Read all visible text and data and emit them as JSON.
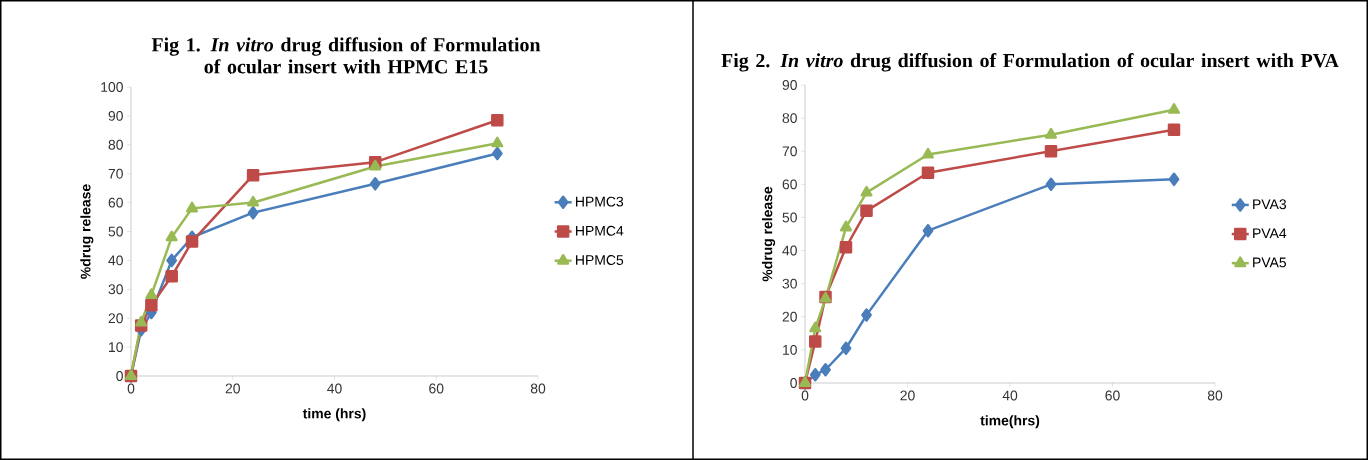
{
  "chart_data": [
    {
      "type": "line",
      "title": "Fig 1. *In vitro* drug diffusion of Formulation of ocular insert with HPMC E15",
      "xlabel": "time (hrs)",
      "ylabel": "%drug release",
      "x": [
        0,
        2,
        4,
        8,
        12,
        24,
        48,
        72
      ],
      "xlim": [
        0,
        80
      ],
      "xticks": [
        0,
        20,
        40,
        60,
        80
      ],
      "ylim": [
        0,
        100
      ],
      "yticks": [
        0,
        10,
        20,
        30,
        40,
        50,
        60,
        70,
        80,
        90,
        100
      ],
      "grid": false,
      "legend": "right",
      "line_style": "solid",
      "series": [
        {
          "name": "HPMC3",
          "color": "#4a7ebb",
          "marker": "diamond",
          "values": [
            0,
            16,
            22,
            40,
            48,
            56.5,
            66.5,
            77
          ]
        },
        {
          "name": "HPMC4",
          "color": "#be4b48",
          "marker": "square",
          "values": [
            0,
            17.5,
            24.5,
            34.5,
            46.5,
            69.5,
            74,
            88.5
          ]
        },
        {
          "name": "HPMC5",
          "color": "#98b954",
          "marker": "triangle",
          "values": [
            0,
            18.5,
            28,
            48,
            58,
            60,
            72.5,
            80.5
          ]
        }
      ]
    },
    {
      "type": "line",
      "title": "Fig 2. *In vitro* drug diffusion of Formulation of ocular insert with PVA",
      "xlabel": "time(hrs)",
      "ylabel": "%drug release",
      "x": [
        0,
        2,
        4,
        8,
        12,
        24,
        48,
        72
      ],
      "xlim": [
        0,
        80
      ],
      "xticks": [
        0,
        20,
        40,
        60,
        80
      ],
      "ylim": [
        0,
        90
      ],
      "yticks": [
        0,
        10,
        20,
        30,
        40,
        50,
        60,
        70,
        80,
        90
      ],
      "grid": false,
      "legend": "right",
      "line_style": "solid",
      "series": [
        {
          "name": "PVA3",
          "color": "#4a7ebb",
          "marker": "diamond",
          "values": [
            0,
            2.5,
            4,
            10.5,
            20.5,
            46,
            60,
            61.5
          ]
        },
        {
          "name": "PVA4",
          "color": "#be4b48",
          "marker": "square",
          "values": [
            0,
            12.5,
            26,
            41,
            52,
            63.5,
            70,
            76.5
          ]
        },
        {
          "name": "PVA5",
          "color": "#98b954",
          "marker": "triangle",
          "values": [
            0,
            16.5,
            25.5,
            47,
            57.5,
            69,
            75,
            82.5
          ]
        }
      ]
    }
  ]
}
